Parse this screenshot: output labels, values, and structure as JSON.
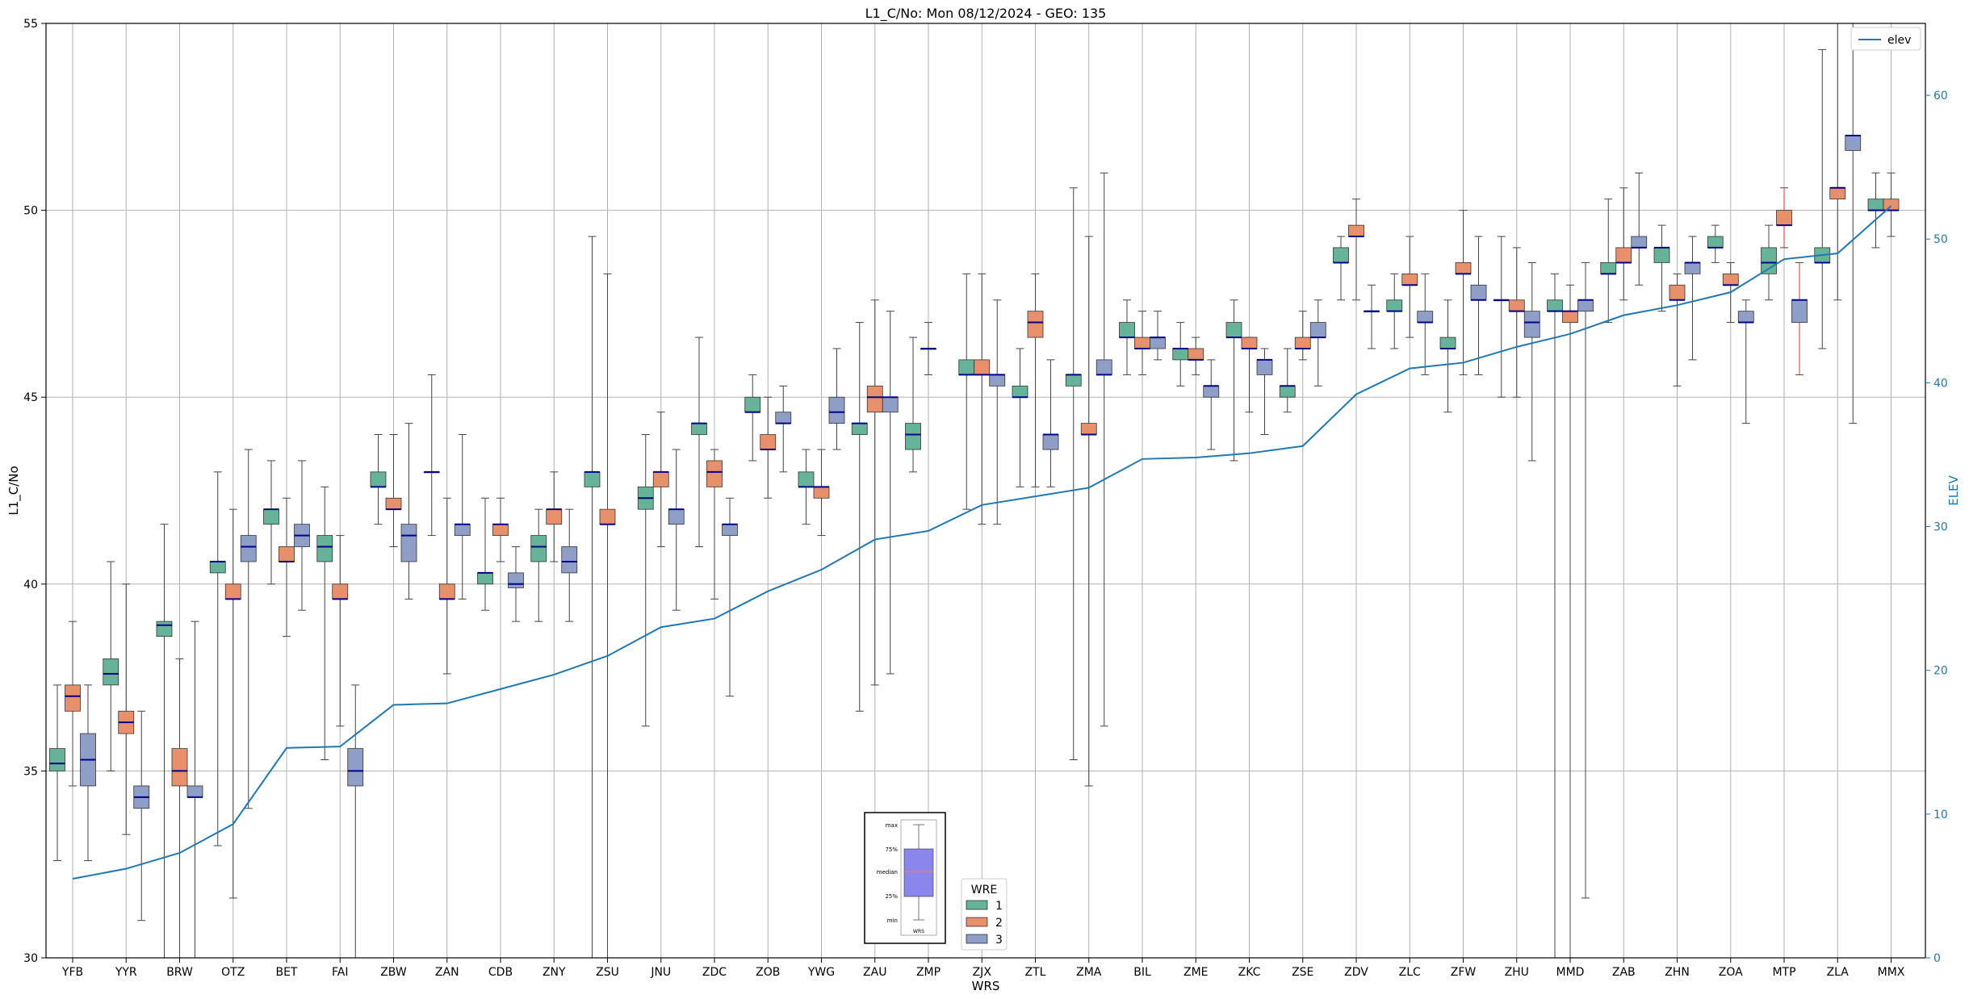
{
  "chart_data": {
    "type": "box",
    "title": "L1_C/No: Mon 08/12/2024 - GEO: 135",
    "xlabel": "WRS",
    "ylabel": "L1_C/No",
    "y2label": "ELEV",
    "ylim": [
      30,
      55
    ],
    "y2lim": [
      0,
      65
    ],
    "yticks": [
      "30",
      "35",
      "40",
      "45",
      "50",
      "55"
    ],
    "y2ticks": [
      "0",
      "10",
      "20",
      "30",
      "40",
      "50",
      "60"
    ],
    "grid": true,
    "categories": [
      "YFB",
      "YYR",
      "BRW",
      "OTZ",
      "BET",
      "FAI",
      "ZBW",
      "ZAN",
      "CDB",
      "ZNY",
      "ZSU",
      "JNU",
      "ZDC",
      "ZOB",
      "YWG",
      "ZAU",
      "ZMP",
      "ZJX",
      "ZTL",
      "ZMA",
      "BIL",
      "ZME",
      "ZKC",
      "ZSE",
      "ZDV",
      "ZLC",
      "ZFW",
      "ZHU",
      "MMD",
      "ZAB",
      "ZHN",
      "ZOA",
      "MTP",
      "ZLA",
      "MMX"
    ],
    "colors": {
      "1": "#66b39a",
      "2": "#e8906b",
      "3": "#8e9ec6",
      "elev": "#1f77b4",
      "median": "#00008b"
    },
    "series": [
      {
        "name": "1",
        "boxes": [
          [
            32.6,
            35.0,
            35.2,
            35.6,
            37.3
          ],
          [
            35.0,
            37.3,
            37.6,
            38.0,
            40.6
          ],
          [
            null,
            38.6,
            38.9,
            39.0,
            41.6
          ],
          [
            33.0,
            40.3,
            40.6,
            40.6,
            43.0
          ],
          [
            40.0,
            41.6,
            42.0,
            42.0,
            43.3
          ],
          [
            35.3,
            40.6,
            41.0,
            41.3,
            42.6
          ],
          [
            41.6,
            42.6,
            42.6,
            43.0,
            44.0
          ],
          [
            41.3,
            43.0,
            43.0,
            43.0,
            45.6
          ],
          [
            39.3,
            40.0,
            40.3,
            40.3,
            42.3
          ],
          [
            39.0,
            40.6,
            41.0,
            41.3,
            42.0
          ],
          [
            null,
            42.6,
            43.0,
            43.0,
            49.3
          ],
          [
            36.2,
            42.0,
            42.3,
            42.6,
            44.0
          ],
          [
            41.0,
            44.0,
            44.3,
            44.3,
            46.6
          ],
          [
            43.3,
            44.6,
            44.6,
            45.0,
            45.6
          ],
          [
            41.6,
            42.6,
            42.6,
            43.0,
            43.6
          ],
          [
            36.6,
            44.0,
            44.3,
            44.3,
            47.0
          ],
          [
            43.0,
            43.6,
            44.0,
            44.3,
            46.6
          ],
          [
            42.0,
            45.6,
            45.6,
            46.0,
            48.3
          ],
          [
            42.6,
            45.0,
            45.0,
            45.3,
            46.3
          ],
          [
            35.3,
            45.3,
            45.6,
            45.6,
            50.6
          ],
          [
            45.6,
            46.6,
            46.6,
            47.0,
            47.6
          ],
          [
            45.3,
            46.0,
            46.3,
            46.3,
            47.0
          ],
          [
            43.3,
            46.6,
            46.6,
            47.0,
            47.6
          ],
          [
            44.6,
            45.0,
            45.3,
            45.3,
            46.3
          ],
          [
            47.6,
            48.6,
            48.6,
            49.0,
            49.3
          ],
          [
            46.3,
            47.3,
            47.3,
            47.6,
            48.3
          ],
          [
            44.6,
            46.3,
            46.3,
            46.6,
            47.6
          ],
          [
            45.0,
            47.6,
            47.6,
            47.6,
            49.3
          ],
          [
            null,
            47.3,
            47.3,
            47.6,
            48.3
          ],
          [
            47.0,
            48.3,
            48.3,
            48.6,
            50.3
          ],
          [
            47.3,
            48.6,
            49.0,
            49.0,
            49.6
          ],
          [
            48.6,
            49.0,
            49.0,
            49.3,
            49.6
          ],
          [
            47.6,
            48.3,
            48.6,
            49.0,
            49.6
          ],
          [
            46.3,
            48.6,
            48.6,
            49.0,
            54.3
          ],
          [
            49.0,
            50.0,
            50.0,
            50.3,
            51.0
          ]
        ]
      },
      {
        "name": "2",
        "boxes": [
          [
            34.6,
            36.6,
            37.0,
            37.3,
            39.0
          ],
          [
            33.3,
            36.0,
            36.3,
            36.6,
            40.0
          ],
          [
            null,
            34.6,
            35.0,
            35.6,
            38.0
          ],
          [
            31.6,
            39.6,
            39.6,
            40.0,
            42.0
          ],
          [
            38.6,
            40.6,
            40.6,
            41.0,
            42.3
          ],
          [
            36.2,
            39.6,
            39.6,
            40.0,
            41.3
          ],
          [
            41.0,
            42.0,
            42.0,
            42.3,
            44.0
          ],
          [
            37.6,
            39.6,
            39.6,
            40.0,
            42.3
          ],
          [
            40.6,
            41.3,
            41.6,
            41.6,
            42.3
          ],
          [
            40.6,
            41.6,
            42.0,
            42.0,
            43.0
          ],
          [
            null,
            41.6,
            41.6,
            42.0,
            48.3
          ],
          [
            41.0,
            42.6,
            43.0,
            43.0,
            44.6
          ],
          [
            39.6,
            42.6,
            43.0,
            43.3,
            43.6
          ],
          [
            42.3,
            43.6,
            43.6,
            44.0,
            45.0
          ],
          [
            41.3,
            42.3,
            42.6,
            42.6,
            43.6
          ],
          [
            37.3,
            44.6,
            45.0,
            45.3,
            47.6
          ],
          [
            45.6,
            46.3,
            46.3,
            46.3,
            47.0
          ],
          [
            41.6,
            45.6,
            45.6,
            46.0,
            48.3
          ],
          [
            42.6,
            46.6,
            47.0,
            47.3,
            48.3
          ],
          [
            34.6,
            44.0,
            44.0,
            44.3,
            49.3
          ],
          [
            45.6,
            46.3,
            46.3,
            46.6,
            47.3
          ],
          [
            45.6,
            46.0,
            46.0,
            46.3,
            46.6
          ],
          [
            44.6,
            46.3,
            46.3,
            46.6,
            46.6
          ],
          [
            46.0,
            46.3,
            46.3,
            46.6,
            47.3
          ],
          [
            47.6,
            49.3,
            49.3,
            49.6,
            50.3
          ],
          [
            46.6,
            48.0,
            48.0,
            48.3,
            49.3
          ],
          [
            45.6,
            48.3,
            48.3,
            48.6,
            50.0
          ],
          [
            45.0,
            47.3,
            47.3,
            47.6,
            49.0
          ],
          [
            null,
            47.0,
            47.3,
            47.3,
            48.0
          ],
          [
            47.6,
            48.6,
            48.6,
            49.0,
            50.6
          ],
          [
            45.3,
            47.6,
            47.6,
            48.0,
            48.3
          ],
          [
            47.0,
            48.0,
            48.0,
            48.3,
            48.6
          ],
          [
            49.0,
            49.6,
            49.6,
            50.0,
            50.6
          ],
          [
            47.6,
            50.3,
            50.6,
            50.6,
            55.0
          ],
          [
            49.3,
            50.0,
            50.0,
            50.3,
            51.0
          ]
        ]
      },
      {
        "name": "3",
        "boxes": [
          [
            32.6,
            34.6,
            35.3,
            36.0,
            37.3
          ],
          [
            31.0,
            34.0,
            34.3,
            34.6,
            36.6
          ],
          [
            null,
            34.3,
            34.3,
            34.6,
            39.0
          ],
          [
            34.0,
            40.6,
            41.0,
            41.3,
            43.6
          ],
          [
            39.3,
            41.0,
            41.3,
            41.6,
            43.3
          ],
          [
            null,
            34.6,
            35.0,
            35.6,
            37.3
          ],
          [
            39.6,
            40.6,
            41.3,
            41.6,
            44.3
          ],
          [
            39.6,
            41.3,
            41.6,
            41.6,
            44.0
          ],
          [
            39.0,
            39.9,
            40.0,
            40.3,
            41.0
          ],
          [
            39.0,
            40.3,
            40.6,
            41.0,
            42.0
          ],
          [
            null,
            null,
            null,
            null,
            null
          ],
          [
            39.3,
            41.6,
            42.0,
            42.0,
            43.6
          ],
          [
            37.0,
            41.3,
            41.6,
            41.6,
            42.3
          ],
          [
            43.0,
            44.3,
            44.3,
            44.6,
            45.3
          ],
          [
            43.6,
            44.3,
            44.6,
            45.0,
            46.3
          ],
          [
            37.6,
            44.6,
            45.0,
            45.0,
            47.3
          ],
          [
            null,
            null,
            null,
            null,
            null
          ],
          [
            41.6,
            45.3,
            45.6,
            45.6,
            47.6
          ],
          [
            42.6,
            43.6,
            44.0,
            44.0,
            46.0
          ],
          [
            36.2,
            45.6,
            45.6,
            46.0,
            51.0
          ],
          [
            46.0,
            46.3,
            46.6,
            46.6,
            47.3
          ],
          [
            43.6,
            45.0,
            45.3,
            45.3,
            46.0
          ],
          [
            44.0,
            45.6,
            46.0,
            46.0,
            46.3
          ],
          [
            45.3,
            46.6,
            46.6,
            47.0,
            47.6
          ],
          [
            46.3,
            47.3,
            47.3,
            47.3,
            48.0
          ],
          [
            45.6,
            47.0,
            47.0,
            47.3,
            48.3
          ],
          [
            45.6,
            47.6,
            47.6,
            48.0,
            49.3
          ],
          [
            43.3,
            46.6,
            47.0,
            47.3,
            48.6
          ],
          [
            31.6,
            47.3,
            47.6,
            47.6,
            48.6
          ],
          [
            48.0,
            49.0,
            49.0,
            49.3,
            51.0
          ],
          [
            46.0,
            48.3,
            48.6,
            48.6,
            49.3
          ],
          [
            44.3,
            47.0,
            47.0,
            47.3,
            47.6
          ],
          [
            45.6,
            47.0,
            47.6,
            47.6,
            48.6
          ],
          [
            44.3,
            51.6,
            52.0,
            52.0,
            55.0
          ],
          [
            null,
            null,
            null,
            null,
            null
          ]
        ]
      },
      {
        "name": "elev",
        "type": "line",
        "values": [
          5.5,
          6.2,
          7.3,
          9.3,
          14.6,
          14.7,
          17.6,
          17.7,
          18.7,
          19.7,
          21.0,
          23.0,
          23.6,
          25.5,
          27.0,
          29.1,
          29.7,
          31.5,
          32.1,
          32.7,
          34.7,
          34.8,
          35.1,
          35.6,
          39.2,
          41.0,
          41.4,
          42.5,
          43.4,
          44.7,
          45.4,
          46.3,
          48.6,
          49.0,
          52.3
        ]
      }
    ],
    "legend": {
      "title": "WRE",
      "entries": [
        "1",
        "2",
        "3"
      ],
      "position": "bottom-center"
    },
    "legend2": {
      "entries": [
        "elev"
      ],
      "position": "top-right"
    },
    "key": {
      "labels": [
        "max",
        "75%",
        "median",
        "25%",
        "min"
      ],
      "xlabel": "WRS",
      "position": "bottom-center"
    }
  }
}
